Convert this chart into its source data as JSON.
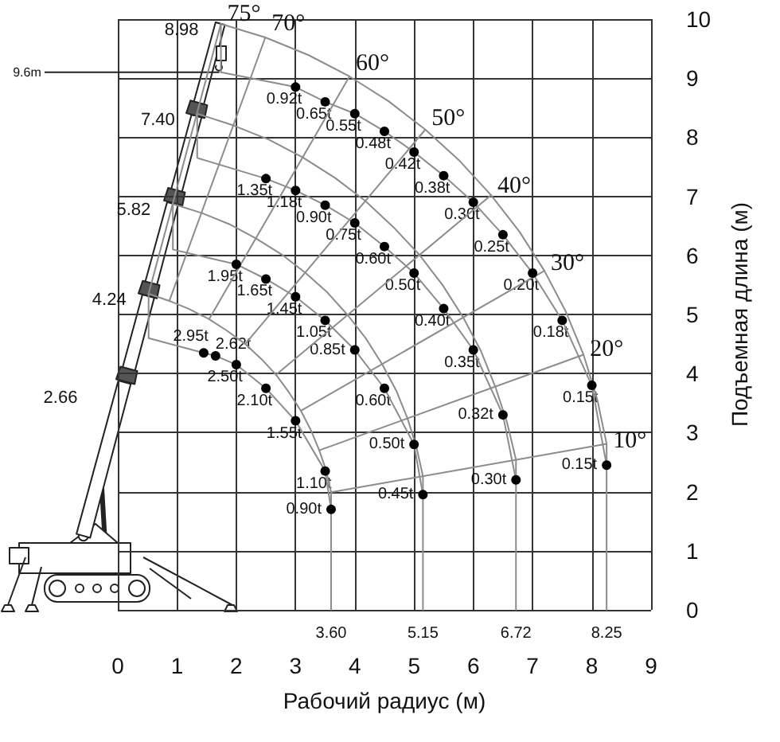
{
  "chart_data": {
    "type": "scatter",
    "xlabel": "Рабочий радиус (м)",
    "ylabel": "Подъемная длина (м)",
    "xlim": [
      0,
      9
    ],
    "xticks": [
      0,
      1,
      2,
      3,
      4,
      5,
      6,
      7,
      8,
      9
    ],
    "ylim": [
      0,
      10
    ],
    "yticks": [
      0,
      1,
      2,
      3,
      4,
      5,
      6,
      7,
      8,
      9,
      10
    ],
    "grid": true,
    "annotations": [
      "2.66",
      {
        "text": "9.6m",
        "x": 1.74,
        "y": 9.1
      },
      {
        "text": "3.60",
        "x": 3.6,
        "y": 0
      },
      {
        "text": "5.15",
        "x": 5.15,
        "y": 0
      },
      {
        "text": "6.72",
        "x": 6.72,
        "y": 0
      },
      {
        "text": "8.25",
        "x": 8.25,
        "y": 0
      },
      {
        "text": "8.98",
        "x": 1.74,
        "y": 9.92
      },
      {
        "text": "7.40",
        "x": 1.34,
        "y": 8.4
      },
      {
        "text": "5.82",
        "x": 0.93,
        "y": 6.87
      },
      {
        "text": "4.24",
        "x": 0.52,
        "y": 5.35
      },
      {
        "text": "0.92t",
        "x": 3,
        "y": 8.85
      },
      {
        "text": "0.65t",
        "x": 3.5,
        "y": 8.6
      },
      {
        "text": "0.55t",
        "x": 4,
        "y": 8.4
      },
      {
        "text": "0.48t",
        "x": 4.5,
        "y": 8.1
      },
      {
        "text": "0.42t",
        "x": 5,
        "y": 7.75
      },
      {
        "text": "0.38t",
        "x": 5.5,
        "y": 7.35
      },
      {
        "text": "0.30t",
        "x": 6,
        "y": 6.9
      },
      {
        "text": "0.25t",
        "x": 6.5,
        "y": 6.35
      },
      {
        "text": "0.20t",
        "x": 7,
        "y": 5.7
      },
      {
        "text": "0.18t",
        "x": 7.5,
        "y": 4.9
      },
      {
        "text": "0.15t",
        "x": 8,
        "y": 3.8
      },
      {
        "text": "0.15t",
        "x": 8.25,
        "y": 2.45
      },
      {
        "text": "1.35t",
        "x": 2.5,
        "y": 7.3
      },
      {
        "text": "1.18t",
        "x": 3,
        "y": 7.1
      },
      {
        "text": "0.90t",
        "x": 3.5,
        "y": 6.85
      },
      {
        "text": "0.75t",
        "x": 4,
        "y": 6.55
      },
      {
        "text": "0.60t",
        "x": 4.5,
        "y": 6.15
      },
      {
        "text": "0.50t",
        "x": 5,
        "y": 5.7
      },
      {
        "text": "0.40t",
        "x": 5.5,
        "y": 5.1
      },
      {
        "text": "0.35t",
        "x": 6,
        "y": 4.4
      },
      {
        "text": "0.32t",
        "x": 6.5,
        "y": 3.3
      },
      {
        "text": "0.30t",
        "x": 6.72,
        "y": 2.2
      },
      {
        "text": "1.95t",
        "x": 2,
        "y": 5.85
      },
      {
        "text": "1.65t",
        "x": 2.5,
        "y": 5.6
      },
      {
        "text": "1.45t",
        "x": 3,
        "y": 5.3
      },
      {
        "text": "1.05t",
        "x": 3.5,
        "y": 4.9
      },
      {
        "text": "0.85t",
        "x": 4,
        "y": 4.4
      },
      {
        "text": "0.60t",
        "x": 4.5,
        "y": 3.75
      },
      {
        "text": "0.50t",
        "x": 5,
        "y": 2.8
      },
      {
        "text": "0.45t",
        "x": 5.15,
        "y": 1.95
      },
      {
        "text": "2.95t",
        "x": 1.45,
        "y": 4.35
      },
      {
        "text": "2.62t",
        "x": 1.65,
        "y": 4.3
      },
      {
        "text": "2.50t",
        "x": 2,
        "y": 4.15
      },
      {
        "text": "2.10t",
        "x": 2.5,
        "y": 3.75
      },
      {
        "text": "1.55t",
        "x": 3,
        "y": 3.2
      },
      {
        "text": "1.10t",
        "x": 3.5,
        "y": 2.35
      },
      {
        "text": "0.90t",
        "x": 3.6,
        "y": 1.7
      }
    ],
    "series": [
      {
        "type": "line",
        "color": "#8c8c8c",
        "x": [
          1.74,
          2.49,
          3.22,
          3.91,
          4.57,
          5.19,
          5.77,
          6.3,
          6.78,
          7.2,
          7.56,
          7.86,
          8.09,
          8.25,
          8.25
        ],
        "values": [
          9.92,
          9.69,
          9.39,
          9.03,
          8.61,
          8.13,
          7.6,
          7.02,
          6.4,
          5.74,
          5.05,
          4.32,
          3.57,
          2.81,
          0
        ]
      },
      {
        "type": "line",
        "color": "#8c8c8c",
        "x": [
          1.34,
          1.95,
          2.55,
          3.12,
          3.67,
          4.18,
          4.65,
          5.09,
          5.48,
          5.83,
          6.13,
          6.37,
          6.57,
          6.72,
          6.72
        ],
        "values": [
          8.4,
          8.2,
          7.96,
          7.66,
          7.31,
          6.92,
          6.48,
          6.01,
          5.5,
          4.95,
          4.38,
          3.78,
          3.17,
          2.54,
          0
        ]
      },
      {
        "type": "line",
        "color": "#8c8c8c",
        "x": [
          0.93,
          1.41,
          1.88,
          2.33,
          2.76,
          3.16,
          3.54,
          3.88,
          4.19,
          4.46,
          4.7,
          4.89,
          5.04,
          5.15,
          5.15
        ],
        "values": [
          6.87,
          6.72,
          6.53,
          6.29,
          6.02,
          5.71,
          5.37,
          4.99,
          4.59,
          4.16,
          3.71,
          3.24,
          2.76,
          2.26,
          0
        ]
      },
      {
        "type": "line",
        "color": "#8c8c8c",
        "x": [
          0.52,
          0.87,
          1.21,
          1.54,
          1.85,
          2.15,
          2.42,
          2.67,
          2.89,
          3.09,
          3.26,
          3.4,
          3.52,
          3.6,
          3.6
        ],
        "values": [
          5.35,
          5.23,
          5.09,
          4.92,
          4.72,
          4.5,
          4.25,
          3.98,
          3.68,
          3.37,
          3.04,
          2.7,
          2.35,
          1.99,
          0
        ]
      },
      {
        "type": "line",
        "color": "#8c8c8c",
        "x": [
          1.74,
          1.74,
          3,
          3.5,
          4,
          4.5,
          5,
          5.5,
          6,
          6.5,
          7,
          7.5,
          8,
          8.25
        ],
        "values": [
          9.92,
          9.1,
          8.85,
          8.6,
          8.4,
          8.1,
          7.75,
          7.35,
          6.9,
          6.35,
          5.7,
          4.9,
          3.8,
          2.45
        ]
      },
      {
        "type": "line",
        "color": "#8c8c8c",
        "x": [
          1.34,
          1.34,
          2.5,
          3,
          3.5,
          4,
          4.5,
          5,
          5.5,
          6,
          6.5,
          6.72
        ],
        "values": [
          8.4,
          7.65,
          7.3,
          7.1,
          6.85,
          6.55,
          6.15,
          5.7,
          5.1,
          4.4,
          3.3,
          2.2
        ]
      },
      {
        "type": "line",
        "color": "#8c8c8c",
        "x": [
          0.93,
          0.93,
          2,
          2.5,
          3,
          3.5,
          4,
          4.5,
          5,
          5.15
        ],
        "values": [
          6.87,
          6.1,
          5.85,
          5.6,
          5.3,
          4.9,
          4.4,
          3.75,
          2.8,
          1.95
        ]
      },
      {
        "type": "line",
        "color": "#8c8c8c",
        "x": [
          0.52,
          0.52,
          1.45,
          1.65,
          2,
          2.5,
          3,
          3.5,
          3.6
        ],
        "values": [
          5.35,
          4.6,
          4.35,
          4.3,
          4.15,
          3.75,
          3.2,
          2.35,
          1.7
        ]
      },
      {
        "type": "line",
        "name": "75°",
        "color": "#8c8c8c",
        "x": [
          0.52,
          1.74
        ],
        "values": [
          5.35,
          9.92
        ]
      },
      {
        "type": "line",
        "name": "70°",
        "color": "#8c8c8c",
        "x": [
          0.87,
          2.49
        ],
        "values": [
          5.23,
          9.69
        ]
      },
      {
        "type": "line",
        "name": "60°",
        "color": "#8c8c8c",
        "x": [
          1.54,
          3.91
        ],
        "values": [
          4.92,
          9.03
        ]
      },
      {
        "type": "line",
        "name": "50°",
        "color": "#8c8c8c",
        "x": [
          2.15,
          5.19
        ],
        "values": [
          4.5,
          8.13
        ]
      },
      {
        "type": "line",
        "name": "40°",
        "color": "#8c8c8c",
        "x": [
          2.67,
          6.3
        ],
        "values": [
          3.98,
          7.02
        ]
      },
      {
        "type": "line",
        "name": "30°",
        "color": "#8c8c8c",
        "x": [
          3.09,
          7.2
        ],
        "values": [
          3.37,
          5.74
        ]
      },
      {
        "type": "line",
        "name": "20°",
        "color": "#8c8c8c",
        "x": [
          3.4,
          7.86
        ],
        "values": [
          2.7,
          4.32
        ]
      },
      {
        "type": "line",
        "name": "10°",
        "color": "#8c8c8c",
        "x": [
          3.6,
          8.25
        ],
        "values": [
          1.99,
          2.81
        ]
      },
      {
        "color": "#000000",
        "marker": "circle",
        "x": [
          3,
          3.5,
          4,
          4.5,
          5,
          5.5,
          6,
          6.5,
          7,
          7.5,
          8,
          8.25
        ],
        "values": [
          8.85,
          8.6,
          8.4,
          8.1,
          7.75,
          7.35,
          6.9,
          6.35,
          5.7,
          4.9,
          3.8,
          2.45
        ]
      },
      {
        "color": "#000000",
        "marker": "circle",
        "x": [
          2.5,
          3,
          3.5,
          4,
          4.5,
          5,
          5.5,
          6,
          6.5,
          6.72
        ],
        "values": [
          7.3,
          7.1,
          6.85,
          6.55,
          6.15,
          5.7,
          5.1,
          4.4,
          3.3,
          2.2
        ]
      },
      {
        "color": "#000000",
        "marker": "circle",
        "x": [
          2,
          2.5,
          3,
          3.5,
          4,
          4.5,
          5,
          5.15
        ],
        "values": [
          5.85,
          5.6,
          5.3,
          4.9,
          4.4,
          3.75,
          2.8,
          1.95
        ]
      },
      {
        "color": "#000000",
        "marker": "circle",
        "x": [
          1.45,
          1.65,
          2,
          2.5,
          3,
          3.5,
          3.6
        ],
        "values": [
          4.35,
          4.3,
          4.15,
          3.75,
          3.2,
          2.35,
          1.7
        ]
      }
    ]
  }
}
